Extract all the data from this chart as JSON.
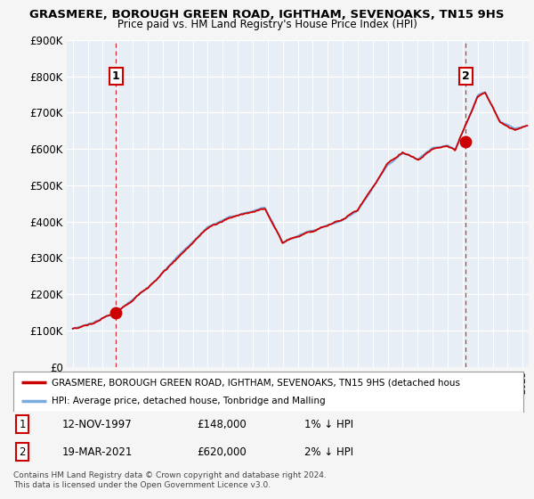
{
  "title1": "GRASMERE, BOROUGH GREEN ROAD, IGHTHAM, SEVENOAKS, TN15 9HS",
  "title2": "Price paid vs. HM Land Registry's House Price Index (HPI)",
  "ylim": [
    0,
    900000
  ],
  "yticks": [
    0,
    100000,
    200000,
    300000,
    400000,
    500000,
    600000,
    700000,
    800000,
    900000
  ],
  "ytick_labels": [
    "£0",
    "£100K",
    "£200K",
    "£300K",
    "£400K",
    "£500K",
    "£600K",
    "£700K",
    "£800K",
    "£900K"
  ],
  "xlim_start": 1994.6,
  "xlim_end": 2025.4,
  "background_color": "#f0f0f0",
  "plot_bg_color": "#e8eef5",
  "grid_color": "#ffffff",
  "sale1_x": 1997.87,
  "sale1_y": 148000,
  "sale1_label": "1",
  "sale2_x": 2021.21,
  "sale2_y": 620000,
  "sale2_label": "2",
  "sale_color": "#cc0000",
  "hpi_color": "#7aabe0",
  "legend_line1": "GRASMERE, BOROUGH GREEN ROAD, IGHTHAM, SEVENOAKS, TN15 9HS (detached hous",
  "legend_line2": "HPI: Average price, detached house, Tonbridge and Malling",
  "annotation1_date": "12-NOV-1997",
  "annotation1_price": "£148,000",
  "annotation1_hpi": "1% ↓ HPI",
  "annotation2_date": "19-MAR-2021",
  "annotation2_price": "£620,000",
  "annotation2_hpi": "2% ↓ HPI",
  "footer": "Contains HM Land Registry data © Crown copyright and database right 2024.\nThis data is licensed under the Open Government Licence v3.0."
}
